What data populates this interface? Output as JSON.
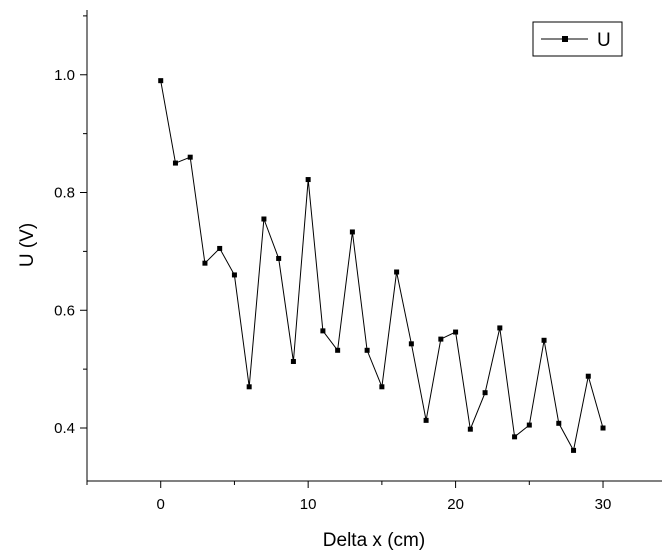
{
  "chart_data": {
    "type": "line",
    "xlabel": "Delta x (cm)",
    "ylabel": "U (V)",
    "xlim": [
      -5,
      34
    ],
    "ylim": [
      0.31,
      1.11
    ],
    "x_ticks": [
      0,
      10,
      20,
      30
    ],
    "y_ticks": [
      0.4,
      0.6,
      0.8,
      1.0
    ],
    "x_tick_labels": [
      "0",
      "10",
      "20",
      "30"
    ],
    "y_tick_labels": [
      "0.4",
      "0.6",
      "0.8",
      "1.0"
    ],
    "grid": false,
    "legend_position": "top-right",
    "series": [
      {
        "name": "U",
        "marker": "square",
        "color": "#000000",
        "x": [
          0,
          1,
          2,
          3,
          4,
          5,
          6,
          7,
          8,
          9,
          10,
          11,
          12,
          13,
          14,
          15,
          16,
          17,
          18,
          19,
          20,
          21,
          22,
          23,
          24,
          25,
          26,
          27,
          28,
          29,
          30
        ],
        "y": [
          0.99,
          0.85,
          0.86,
          0.68,
          0.705,
          0.66,
          0.47,
          0.755,
          0.688,
          0.513,
          0.822,
          0.565,
          0.532,
          0.733,
          0.532,
          0.47,
          0.665,
          0.543,
          0.413,
          0.551,
          0.563,
          0.398,
          0.46,
          0.57,
          0.385,
          0.405,
          0.549,
          0.408,
          0.362,
          0.488,
          0.4
        ]
      }
    ]
  }
}
